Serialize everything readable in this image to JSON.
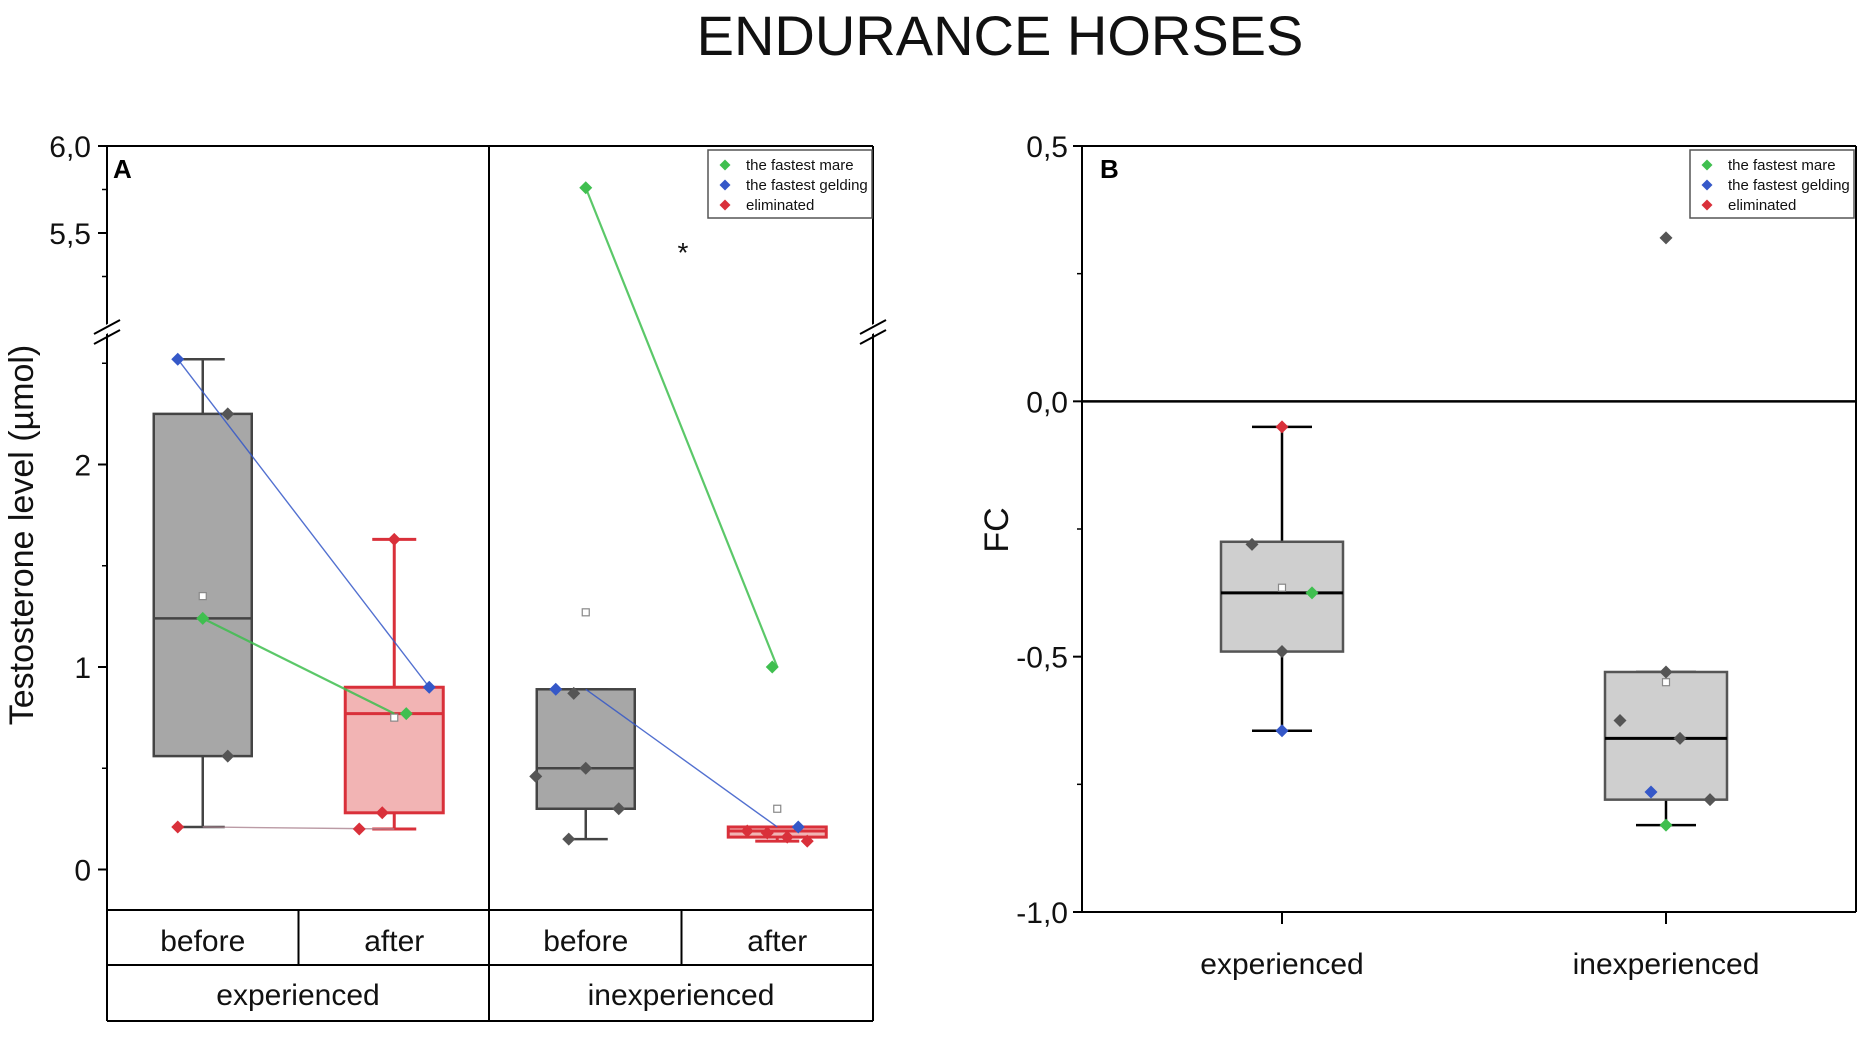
{
  "figure": {
    "title": "ENDURANCE HORSES"
  },
  "colors": {
    "mare": "#3fbf4f",
    "gelding": "#3558c8",
    "eliminated": "#d9303a",
    "dots": "#555555",
    "grey_box": "#a7a7a7",
    "red_box": "#f2b4b4",
    "red_line": "#d9303a",
    "grey_fill_B": "#cfcfcf"
  },
  "chart_data": [
    {
      "panel": "A",
      "type": "box",
      "ylabel": "Testosterone level (µmol)",
      "yaxis": {
        "broken": true,
        "lower_range": [
          -0.2,
          2.6
        ],
        "upper_range": [
          5.0,
          6.0
        ],
        "ticks_lower": [
          "0",
          "1",
          "2"
        ],
        "ticks_upper": [
          "5,5",
          "6,0"
        ],
        "tick_values_lower": [
          0,
          1,
          2
        ],
        "tick_values_upper": [
          5.5,
          6.0
        ]
      },
      "x_labels_level1": [
        "before",
        "after",
        "before",
        "after"
      ],
      "x_labels_level2": [
        "experienced",
        "inexperienced"
      ],
      "legend": [
        "the fastest mare",
        "the fastest gelding",
        "eliminated"
      ],
      "annotation": "*",
      "groups": [
        {
          "group": "experienced",
          "time": "before",
          "q1": 0.56,
          "median": 1.24,
          "q3": 2.25,
          "min": 0.21,
          "max": 2.52,
          "mean": 1.35,
          "box": "grey",
          "points": [
            {
              "y": 2.52,
              "kind": "gelding"
            },
            {
              "y": 2.25,
              "kind": "other"
            },
            {
              "y": 1.24,
              "kind": "mare"
            },
            {
              "y": 0.56,
              "kind": "other"
            },
            {
              "y": 0.21,
              "kind": "eliminated"
            }
          ]
        },
        {
          "group": "experienced",
          "time": "after",
          "q1": 0.28,
          "median": 0.77,
          "q3": 0.9,
          "min": 0.2,
          "max": 1.63,
          "mean": 0.75,
          "box": "red",
          "points": [
            {
              "y": 1.63,
              "kind": "eliminated_top"
            },
            {
              "y": 0.9,
              "kind": "gelding"
            },
            {
              "y": 0.77,
              "kind": "mare"
            },
            {
              "y": 0.28,
              "kind": "eliminated_mid"
            },
            {
              "y": 0.2,
              "kind": "eliminated"
            }
          ]
        },
        {
          "group": "inexperienced",
          "time": "before",
          "q1": 0.3,
          "median": 0.5,
          "q3": 0.89,
          "min": 0.15,
          "max": 0.89,
          "mean": 1.27,
          "box": "grey",
          "points": [
            {
              "y": 5.76,
              "kind": "mare"
            },
            {
              "y": 0.89,
              "kind": "gelding"
            },
            {
              "y": 0.87,
              "kind": "other"
            },
            {
              "y": 0.5,
              "kind": "other"
            },
            {
              "y": 0.46,
              "kind": "other"
            },
            {
              "y": 0.3,
              "kind": "other"
            },
            {
              "y": 0.15,
              "kind": "other"
            }
          ]
        },
        {
          "group": "inexperienced",
          "time": "after",
          "q1": 0.16,
          "median": 0.19,
          "q3": 0.21,
          "min": 0.14,
          "max": 0.21,
          "mean": 0.3,
          "box": "red",
          "points": [
            {
              "y": 1.0,
              "kind": "mare"
            },
            {
              "y": 0.21,
              "kind": "gelding"
            },
            {
              "y": 0.19,
              "kind": "eliminated"
            },
            {
              "y": 0.18,
              "kind": "eliminated"
            },
            {
              "y": 0.16,
              "kind": "eliminated"
            },
            {
              "y": 0.14,
              "kind": "eliminated"
            }
          ]
        }
      ],
      "connections": [
        {
          "kind": "gelding",
          "from": [
            0,
            2.52
          ],
          "to": [
            1,
            0.9
          ]
        },
        {
          "kind": "mare",
          "from": [
            0,
            1.24
          ],
          "to": [
            1,
            0.77
          ]
        },
        {
          "kind": "eliminated",
          "from": [
            0,
            0.21
          ],
          "to": [
            1,
            0.2
          ]
        },
        {
          "kind": "mare",
          "from": [
            2,
            5.76
          ],
          "to": [
            3,
            1.0
          ]
        },
        {
          "kind": "gelding",
          "from": [
            2,
            0.89
          ],
          "to": [
            3,
            0.21
          ]
        }
      ]
    },
    {
      "panel": "B",
      "type": "box",
      "ylabel": "FC",
      "ylim": [
        -1.0,
        0.5
      ],
      "yticks": [
        "0,5",
        "0,0",
        "-0,5",
        "-1,0"
      ],
      "ytick_values": [
        0.5,
        0.0,
        -0.5,
        -1.0
      ],
      "categories": [
        "experienced",
        "inexperienced"
      ],
      "legend": [
        "the fastest mare",
        "the fastest gelding",
        "eliminated"
      ],
      "reference_line": 0.0,
      "groups": [
        {
          "category": "experienced",
          "q1": -0.49,
          "median": -0.375,
          "q3": -0.275,
          "min": -0.645,
          "max": -0.05,
          "mean": -0.365,
          "points": [
            {
              "y": -0.05,
              "kind": "eliminated"
            },
            {
              "y": -0.28,
              "kind": "other"
            },
            {
              "y": -0.375,
              "kind": "mare"
            },
            {
              "y": -0.49,
              "kind": "other"
            },
            {
              "y": -0.645,
              "kind": "gelding"
            }
          ]
        },
        {
          "category": "inexperienced",
          "q1": -0.78,
          "median": -0.66,
          "q3": -0.53,
          "min": -0.83,
          "max": -0.53,
          "mean": -0.55,
          "points": [
            {
              "y": 0.32,
              "kind": "other"
            },
            {
              "y": -0.53,
              "kind": "other"
            },
            {
              "y": -0.625,
              "kind": "other"
            },
            {
              "y": -0.66,
              "kind": "other"
            },
            {
              "y": -0.765,
              "kind": "gelding"
            },
            {
              "y": -0.78,
              "kind": "other"
            },
            {
              "y": -0.83,
              "kind": "mare"
            }
          ]
        }
      ]
    }
  ]
}
